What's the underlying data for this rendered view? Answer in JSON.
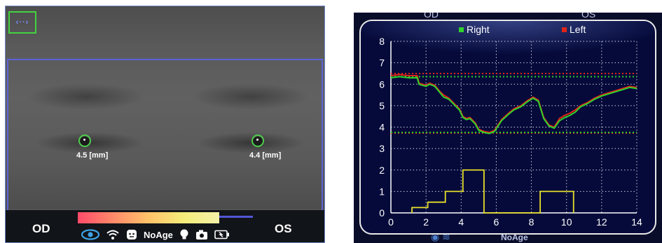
{
  "camera": {
    "right_eye": {
      "label": "4.5 [mm]"
    },
    "left_eye": {
      "label": "4.4 [mm]"
    },
    "nav_arrows": "‹··›"
  },
  "status": {
    "od": "OD",
    "os": "OS",
    "mode": "NoAge"
  },
  "right_panel": {
    "header_od": "OD",
    "header_os": "OS",
    "footer": "NoAge"
  },
  "colors": {
    "right": "#2fd32b",
    "left": "#e0241a",
    "stimulus": "#e6df2a",
    "green_ring": "#4ccd4a",
    "scan_box": "#5b63d8"
  },
  "chart_data": {
    "type": "line",
    "legend": [
      "Right",
      "Left"
    ],
    "xlim": [
      0,
      14
    ],
    "ylim": [
      0,
      8
    ],
    "x_ticks": [
      "0",
      "2",
      "4",
      "6",
      "8",
      "10",
      "12",
      "14"
    ],
    "y_ticks": [
      "0",
      "1",
      "2",
      "3",
      "4",
      "5",
      "6",
      "7",
      "8"
    ],
    "grid": true,
    "series": [
      {
        "name": "Right",
        "x": [
          0,
          0.5,
          1.0,
          1.5,
          1.6,
          1.8,
          2.0,
          2.2,
          2.5,
          2.8,
          3.0,
          3.3,
          3.6,
          3.9,
          4.1,
          4.3,
          4.5,
          4.8,
          5.0,
          5.3,
          5.6,
          5.9,
          6.3,
          6.7,
          7.0,
          7.4,
          7.8,
          8.1,
          8.4,
          8.7,
          9.0,
          9.3,
          9.6,
          9.9,
          10.2,
          10.5,
          10.8,
          11.2,
          11.6,
          12.0,
          12.4,
          12.8,
          13.2,
          13.6,
          14.0
        ],
        "y": [
          6.3,
          6.35,
          6.3,
          6.3,
          6.0,
          5.95,
          5.9,
          6.0,
          5.9,
          5.6,
          5.4,
          5.3,
          5.05,
          4.8,
          4.45,
          4.35,
          4.4,
          4.15,
          3.85,
          3.75,
          3.7,
          3.8,
          4.3,
          4.6,
          4.8,
          4.95,
          5.2,
          5.35,
          5.2,
          4.4,
          4.05,
          3.95,
          4.3,
          4.45,
          4.55,
          4.7,
          4.95,
          5.1,
          5.3,
          5.45,
          5.55,
          5.65,
          5.75,
          5.85,
          5.8
        ]
      },
      {
        "name": "Left",
        "x": [
          0,
          0.5,
          1.0,
          1.5,
          1.6,
          1.8,
          2.0,
          2.2,
          2.5,
          2.8,
          3.0,
          3.3,
          3.6,
          3.9,
          4.1,
          4.3,
          4.5,
          4.8,
          5.0,
          5.3,
          5.6,
          5.9,
          6.3,
          6.7,
          7.0,
          7.4,
          7.8,
          8.1,
          8.4,
          8.7,
          9.0,
          9.3,
          9.6,
          9.9,
          10.2,
          10.5,
          10.8,
          11.2,
          11.6,
          12.0,
          12.4,
          12.8,
          13.2,
          13.6,
          14.0
        ],
        "y": [
          6.4,
          6.45,
          6.4,
          6.4,
          6.05,
          6.0,
          5.95,
          6.05,
          5.95,
          5.65,
          5.5,
          5.35,
          5.1,
          4.85,
          4.5,
          4.4,
          4.45,
          4.2,
          3.9,
          3.8,
          3.75,
          3.85,
          4.35,
          4.65,
          4.85,
          5.0,
          5.25,
          5.4,
          5.25,
          4.45,
          4.1,
          4.0,
          4.4,
          4.55,
          4.65,
          4.8,
          5.0,
          5.15,
          5.35,
          5.5,
          5.6,
          5.7,
          5.8,
          5.9,
          5.85
        ]
      }
    ],
    "reference_lines": {
      "left_max": 6.5,
      "right_max": 6.35,
      "left_min": 3.72,
      "right_min": 3.75
    },
    "stimulus": {
      "x": [
        1.2,
        1.2,
        2.1,
        2.1,
        3.1,
        3.1,
        4.1,
        4.1,
        5.3,
        5.3,
        8.5,
        8.5,
        10.4,
        10.4
      ],
      "y": [
        0,
        0.25,
        0.25,
        0.5,
        0.5,
        1.0,
        1.0,
        2.0,
        2.0,
        0,
        0,
        1.0,
        1.0,
        0
      ]
    }
  }
}
